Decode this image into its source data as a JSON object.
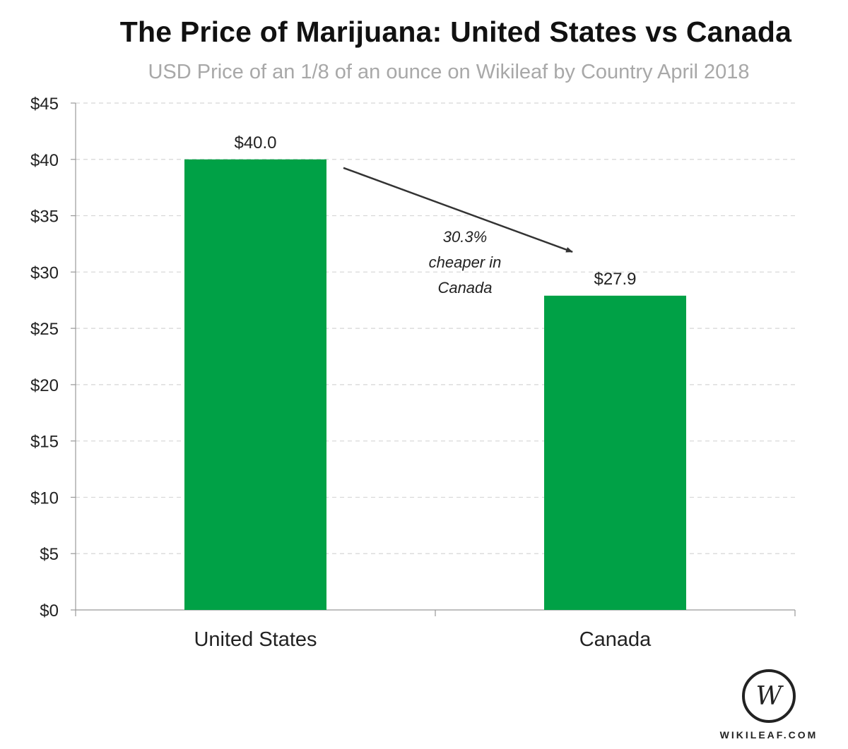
{
  "chart_data": {
    "type": "bar",
    "title": "The Price of Marijuana: United States vs Canada",
    "subtitle": "USD Price of an 1/8 of an ounce on Wikileaf by Country April 2018",
    "xlabel": "",
    "ylabel": "",
    "categories": [
      "United States",
      "Canada"
    ],
    "values": [
      40.0,
      27.9
    ],
    "data_labels": [
      "$40.0",
      "$27.9"
    ],
    "ylim": [
      0,
      45
    ],
    "y_ticks": [
      0,
      5,
      10,
      15,
      20,
      25,
      30,
      35,
      40,
      45
    ],
    "y_tick_labels": [
      "$0",
      "$5",
      "$10",
      "$15",
      "$20",
      "$25",
      "$30",
      "$35",
      "$40",
      "$45"
    ],
    "grid": true,
    "bar_color": "#00a146",
    "annotation": {
      "lines": [
        "30.3%",
        "cheaper in",
        "Canada"
      ],
      "arrow_from": "United States",
      "arrow_to": "Canada"
    }
  },
  "branding": {
    "logo_letter": "W",
    "site": "WIKILEAF.COM"
  }
}
